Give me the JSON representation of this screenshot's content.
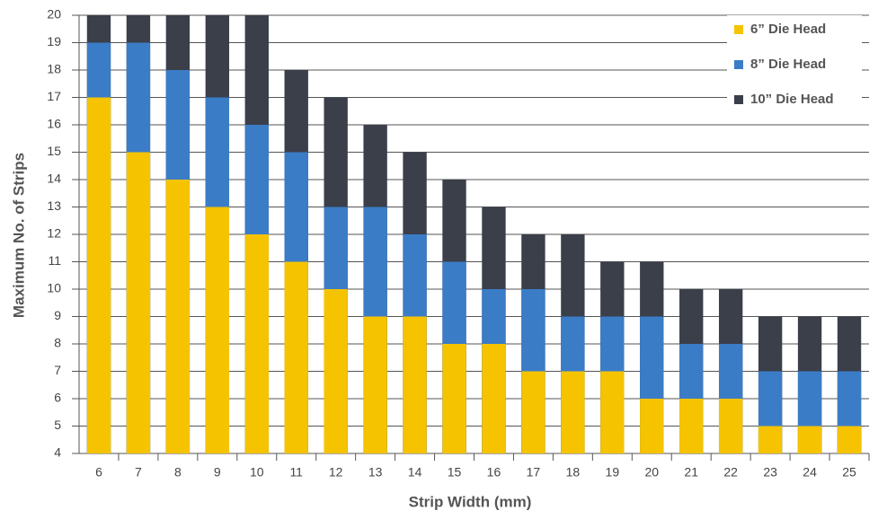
{
  "chart_data": {
    "type": "bar",
    "mode": "overlap",
    "x_label": "Strip Width (mm)",
    "y_label": "Maximum No. of Strips",
    "categories": [
      "6",
      "7",
      "8",
      "9",
      "10",
      "11",
      "12",
      "13",
      "14",
      "15",
      "16",
      "17",
      "18",
      "19",
      "20",
      "21",
      "22",
      "23",
      "24",
      "25"
    ],
    "series": [
      {
        "name": "6” Die Head",
        "color": "#f5c300",
        "values": [
          17,
          15,
          14,
          13,
          12,
          11,
          10,
          9,
          9,
          8,
          8,
          7,
          7,
          7,
          6,
          6,
          6,
          5,
          5,
          5
        ]
      },
      {
        "name": "8” Die Head",
        "color": "#3b7cc7",
        "values": [
          19,
          19,
          18,
          17,
          16,
          15,
          13,
          13,
          12,
          11,
          10,
          10,
          9,
          9,
          9,
          8,
          8,
          7,
          7,
          7
        ]
      },
      {
        "name": "10” Die Head",
        "color": "#3a3f4a",
        "values": [
          20,
          20,
          20,
          20,
          20,
          18,
          17,
          16,
          15,
          14,
          13,
          12,
          12,
          11,
          11,
          10,
          10,
          9,
          9,
          9
        ]
      }
    ],
    "ylim": [
      4,
      20
    ],
    "yticks": [
      4,
      5,
      6,
      7,
      8,
      9,
      10,
      11,
      12,
      13,
      14,
      15,
      16,
      17,
      18,
      19,
      20
    ],
    "grid": true,
    "legend": "top-right"
  }
}
